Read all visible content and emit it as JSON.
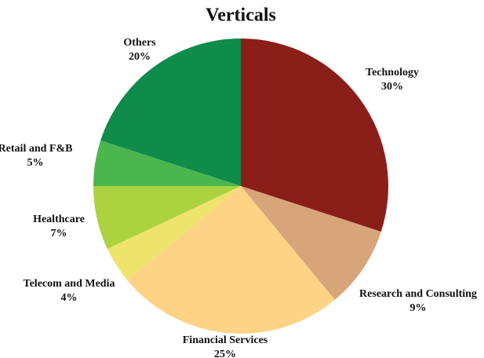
{
  "chart_data": {
    "type": "pie",
    "title": "Verticals",
    "categories": [
      "Technology",
      "Research and Consulting",
      "Financial Services",
      "Telecom and Media",
      "Healthcare",
      "Retail and F&B",
      "Others"
    ],
    "values": [
      30,
      9,
      25,
      4,
      7,
      5,
      20
    ],
    "value_labels": [
      "30%",
      "9%",
      "25%",
      "4%",
      "7%",
      "5%",
      "20%"
    ],
    "colors": [
      "#8a1f1a",
      "#d8a57b",
      "#fdd486",
      "#efe46b",
      "#acd23f",
      "#4cb64e",
      "#0f8b4a"
    ]
  }
}
